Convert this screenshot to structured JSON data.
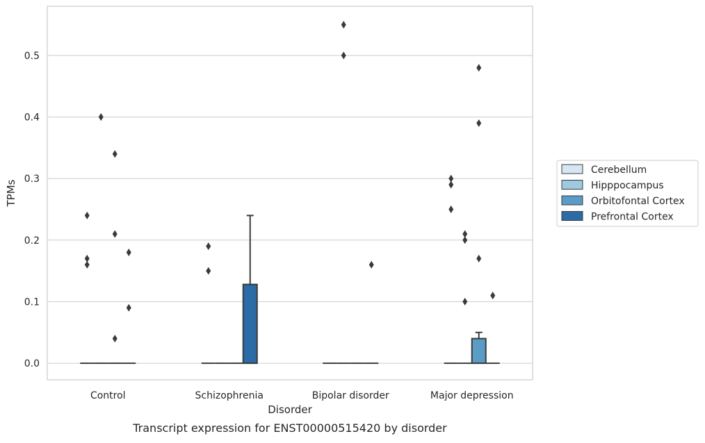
{
  "chart_data": {
    "type": "box",
    "caption": "Transcript expression for ENST00000515420 by disorder",
    "xlabel": "Disorder",
    "ylabel": "TPMs",
    "ylim": [
      -0.027,
      0.58
    ],
    "yticks": [
      0.0,
      0.1,
      0.2,
      0.3,
      0.4,
      0.5
    ],
    "ytick_labels": [
      "0.0",
      "0.1",
      "0.2",
      "0.3",
      "0.4",
      "0.5"
    ],
    "grid": "horizontal",
    "legend_position": "right",
    "categories": [
      "Control",
      "Schizophrenia",
      "Bipolar disorder",
      "Major depression"
    ],
    "series": [
      {
        "name": "Cerebellum",
        "color": "#d6e6f4",
        "boxes": [
          {
            "category": "Control",
            "q1": 0,
            "median": 0,
            "q3": 0,
            "whisker_low": 0,
            "whisker_high": 0,
            "outliers": [
              0.24,
              0.17,
              0.16
            ]
          },
          {
            "category": "Schizophrenia",
            "q1": 0,
            "median": 0,
            "q3": 0,
            "whisker_low": 0,
            "whisker_high": 0,
            "outliers": [
              0.19,
              0.15
            ]
          },
          {
            "category": "Bipolar disorder",
            "q1": 0,
            "median": 0,
            "q3": 0,
            "whisker_low": 0,
            "whisker_high": 0,
            "outliers": []
          },
          {
            "category": "Major depression",
            "q1": 0,
            "median": 0,
            "q3": 0,
            "whisker_low": 0,
            "whisker_high": 0,
            "outliers": [
              0.3,
              0.29,
              0.25
            ]
          }
        ]
      },
      {
        "name": "Hipppocampus",
        "color": "#9ecae1",
        "boxes": [
          {
            "category": "Control",
            "q1": 0,
            "median": 0,
            "q3": 0,
            "whisker_low": 0,
            "whisker_high": 0,
            "outliers": [
              0.4
            ]
          },
          {
            "category": "Schizophrenia",
            "q1": 0,
            "median": 0,
            "q3": 0,
            "whisker_low": 0,
            "whisker_high": 0,
            "outliers": []
          },
          {
            "category": "Bipolar disorder",
            "q1": 0,
            "median": 0,
            "q3": 0,
            "whisker_low": 0,
            "whisker_high": 0,
            "outliers": [
              0.55,
              0.5
            ]
          },
          {
            "category": "Major depression",
            "q1": 0,
            "median": 0,
            "q3": 0,
            "whisker_low": 0,
            "whisker_high": 0,
            "outliers": [
              0.21,
              0.2,
              0.1
            ]
          }
        ]
      },
      {
        "name": "Orbitofontal Cortex",
        "color": "#5a9cc6",
        "boxes": [
          {
            "category": "Control",
            "q1": 0,
            "median": 0,
            "q3": 0,
            "whisker_low": 0,
            "whisker_high": 0,
            "outliers": [
              0.34,
              0.21,
              0.04
            ]
          },
          {
            "category": "Schizophrenia",
            "q1": 0,
            "median": 0,
            "q3": 0,
            "whisker_low": 0,
            "whisker_high": 0,
            "outliers": []
          },
          {
            "category": "Bipolar disorder",
            "q1": 0,
            "median": 0,
            "q3": 0,
            "whisker_low": 0,
            "whisker_high": 0,
            "outliers": []
          },
          {
            "category": "Major depression",
            "q1": 0,
            "median": 0,
            "q3": 0.04,
            "whisker_low": 0,
            "whisker_high": 0.05,
            "outliers": [
              0.48,
              0.39,
              0.17
            ]
          }
        ]
      },
      {
        "name": "Prefrontal Cortex",
        "color": "#2b6ba6",
        "boxes": [
          {
            "category": "Control",
            "q1": 0,
            "median": 0,
            "q3": 0,
            "whisker_low": 0,
            "whisker_high": 0,
            "outliers": [
              0.18,
              0.09
            ]
          },
          {
            "category": "Schizophrenia",
            "q1": 0,
            "median": 0,
            "q3": 0.128,
            "whisker_low": 0,
            "whisker_high": 0.24,
            "outliers": []
          },
          {
            "category": "Bipolar disorder",
            "q1": 0,
            "median": 0,
            "q3": 0,
            "whisker_low": 0,
            "whisker_high": 0,
            "outliers": [
              0.16
            ]
          },
          {
            "category": "Major depression",
            "q1": 0,
            "median": 0,
            "q3": 0,
            "whisker_low": 0,
            "whisker_high": 0,
            "outliers": [
              0.11
            ]
          }
        ]
      }
    ]
  }
}
